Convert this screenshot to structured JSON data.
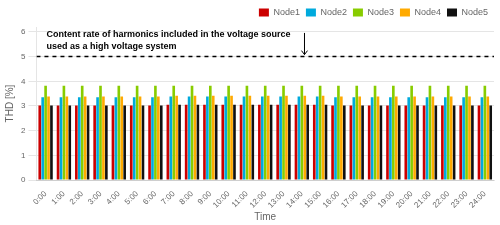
{
  "chart_data": {
    "type": "bar",
    "xlabel": "Time",
    "ylabel": "THD [%]",
    "categories": [
      "0:00",
      "1:00",
      "2:00",
      "3:00",
      "4:00",
      "5:00",
      "6:00",
      "7:00",
      "8:00",
      "9:00",
      "10:00",
      "11:00",
      "12:00",
      "13:00",
      "14:00",
      "15:00",
      "16:00",
      "17:00",
      "18:00",
      "19:00",
      "20:00",
      "21:00",
      "22:00",
      "23:00",
      "24:00"
    ],
    "series": [
      {
        "name": "Node1",
        "color": "#cc0000",
        "values": [
          3.02,
          3.02,
          3.02,
          3.02,
          3.02,
          3.02,
          3.02,
          3.05,
          3.05,
          3.05,
          3.05,
          3.05,
          3.05,
          3.05,
          3.05,
          3.05,
          3.02,
          3.02,
          3.02,
          3.02,
          3.02,
          3.02,
          3.02,
          3.02,
          3.02
        ]
      },
      {
        "name": "Node2",
        "color": "#00aadd",
        "values": [
          3.35,
          3.35,
          3.35,
          3.35,
          3.35,
          3.35,
          3.35,
          3.38,
          3.38,
          3.38,
          3.38,
          3.38,
          3.38,
          3.38,
          3.38,
          3.38,
          3.35,
          3.35,
          3.35,
          3.35,
          3.35,
          3.35,
          3.35,
          3.35,
          3.35
        ]
      },
      {
        "name": "Node3",
        "color": "#88cc00",
        "values": [
          3.82,
          3.82,
          3.82,
          3.82,
          3.82,
          3.82,
          3.82,
          3.82,
          3.82,
          3.82,
          3.82,
          3.82,
          3.82,
          3.82,
          3.82,
          3.82,
          3.82,
          3.82,
          3.82,
          3.82,
          3.82,
          3.82,
          3.82,
          3.82,
          3.82
        ]
      },
      {
        "name": "Node4",
        "color": "#ffaa00",
        "values": [
          3.38,
          3.38,
          3.38,
          3.38,
          3.38,
          3.38,
          3.38,
          3.42,
          3.42,
          3.42,
          3.42,
          3.42,
          3.42,
          3.42,
          3.42,
          3.42,
          3.38,
          3.38,
          3.38,
          3.38,
          3.38,
          3.38,
          3.38,
          3.38,
          3.38
        ]
      },
      {
        "name": "Node5",
        "color": "#111111",
        "values": [
          3.02,
          3.02,
          3.02,
          3.02,
          3.02,
          3.02,
          3.02,
          3.05,
          3.05,
          3.05,
          3.05,
          3.05,
          3.05,
          3.05,
          3.05,
          3.05,
          3.02,
          3.02,
          3.02,
          3.02,
          3.02,
          3.02,
          3.02,
          3.02,
          3.02
        ]
      }
    ],
    "hline_y": 5.0,
    "annotations": [
      "Content rate of harmonics included in the voltage source",
      "used as a high voltage system"
    ],
    "ylim": [
      0,
      6.2
    ],
    "yticks": [
      0,
      1,
      2,
      3,
      4,
      5,
      6
    ],
    "grid": true,
    "legend": "upper right"
  }
}
